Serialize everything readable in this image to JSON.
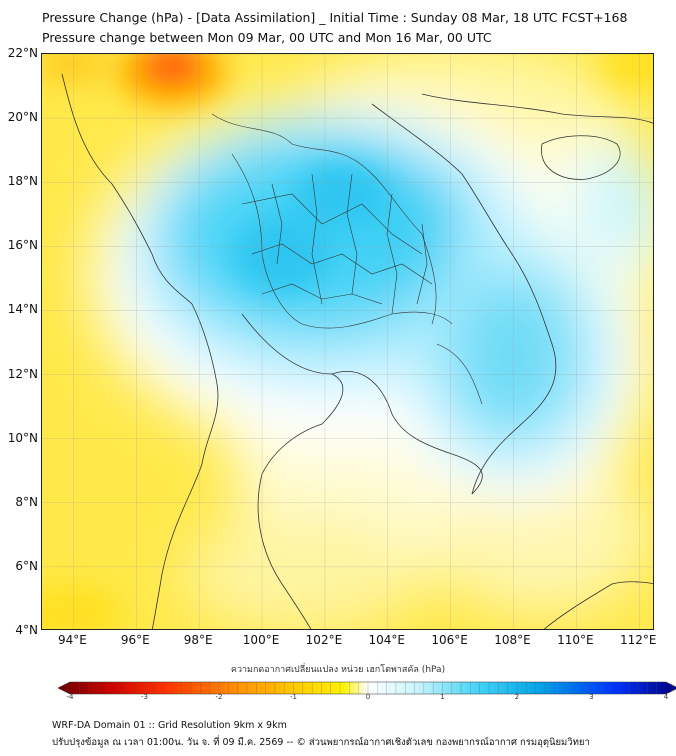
{
  "title": {
    "line1": "Pressure Change (hPa) - [Data Assimilation] _ Initial Time : Sunday 08 Mar, 18 UTC FCST+168",
    "line2": "Pressure change between Mon 09 Mar, 00 UTC and Mon 16 Mar, 00 UTC"
  },
  "map": {
    "lat_labels": [
      "22°N",
      "20°N",
      "18°N",
      "16°N",
      "14°N",
      "12°N",
      "10°N",
      "8°N",
      "6°N",
      "4°N"
    ],
    "lon_labels": [
      "94°E",
      "96°E",
      "98°E",
      "100°E",
      "102°E",
      "104°E",
      "106°E",
      "108°E",
      "110°E",
      "112°E"
    ],
    "lat_range": [
      4,
      22
    ],
    "lon_range": [
      93,
      112.5
    ],
    "grid": true
  },
  "colorbar": {
    "title": "ความกดอากาศเปลี่ยนแปลง หน่วย เฮกโตพาสคัล (hPa)",
    "ticks": [
      "-4",
      "-3",
      "-2",
      "-1",
      "0",
      "1",
      "2",
      "3",
      "4"
    ],
    "range": [
      -4,
      4
    ],
    "colors": [
      "#6b0000",
      "#c80000",
      "#ff3000",
      "#ff8a00",
      "#ffc800",
      "#fff200",
      "#ffffff",
      "#c8f4ff",
      "#3fd2f5",
      "#00a2e8",
      "#0030ff",
      "#00007a"
    ]
  },
  "footer": {
    "line1": "WRF-DA Domain 01 :: Grid Resolution 9km x 9km",
    "line2": "ปรับปรุงข้อมูล ณ เวลา 01:00น. วัน จ. ที่ 09 มี.ค. 2569 -- © ส่วนพยากรณ์อากาศเชิงตัวเลข กองพยากรณ์อากาศ กรมอุตุนิยมวิทยา"
  }
}
